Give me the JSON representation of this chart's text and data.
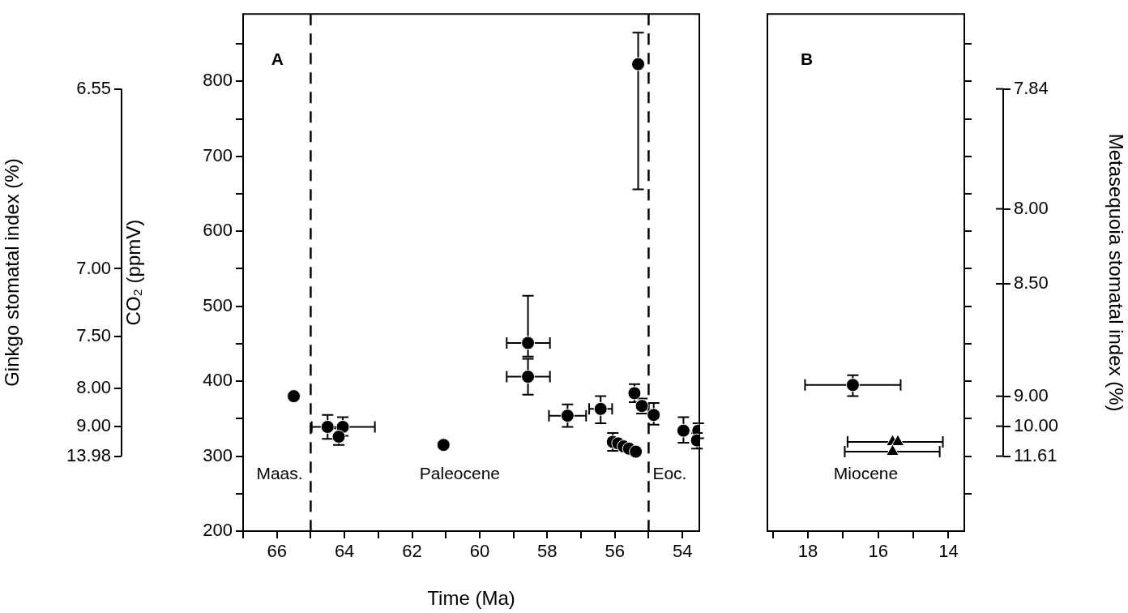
{
  "chart_data": [
    {
      "type": "scatter",
      "xlabel": "Time (Ma)",
      "ylabel": "CO₂ (ppmV)",
      "y2label": "Ginkgo stomatal index (%)",
      "xlim": [
        67,
        53.5
      ],
      "xticks": [
        {
          "value": 67,
          "label": null
        },
        66,
        {
          "value": 65,
          "label": null
        },
        64,
        {
          "value": 63,
          "label": null
        },
        62,
        {
          "value": 61,
          "label": null
        },
        60,
        {
          "value": 59,
          "label": null
        },
        58,
        {
          "value": 57,
          "label": null
        },
        56,
        {
          "value": 55,
          "label": null
        },
        54
      ],
      "ylim": [
        200,
        890
      ],
      "yticks": [
        200,
        {
          "value": 250,
          "label": null
        },
        300,
        {
          "value": 350,
          "label": null
        },
        400,
        {
          "value": 450,
          "label": null
        },
        500,
        {
          "value": 550,
          "label": null
        },
        600,
        {
          "value": 650,
          "label": null
        },
        700,
        {
          "value": 750,
          "label": null
        },
        800,
        {
          "value": 850,
          "label": null
        }
      ],
      "y2_categories": [
        null,
        null,
        null,
        null,
        null,
        null,
        null,
        null,
        null,
        null,
        "6.55",
        null,
        null,
        null,
        null,
        null,
        null,
        null,
        null,
        null,
        null,
        null,
        null,
        null,
        null,
        null,
        null,
        null,
        null,
        null,
        null,
        null,
        null,
        null,
        "7.00",
        null,
        null,
        null,
        null,
        null,
        null,
        null,
        null,
        "7.50",
        null,
        null,
        null,
        null,
        null,
        null,
        "8.00",
        null,
        null,
        null,
        null,
        "9.00",
        null,
        null,
        null,
        "13.98",
        null,
        null,
        null,
        null,
        null,
        null,
        null,
        null,
        null,
        null
      ],
      "series": [
        {
          "color": "#000000",
          "marker": "circle",
          "x": [
            65.5,
            64.5,
            64.05,
            64.17,
            61.07,
            58.57,
            58.57,
            57.4,
            56.42,
            56.06,
            55.9,
            55.74,
            55.58,
            55.38,
            55.42,
            55.2,
            54.85,
            55.31,
            53.97,
            53.53,
            53.57
          ],
          "values": [
            380,
            339,
            339,
            326,
            315,
            451,
            406,
            354,
            363,
            319,
            317,
            313,
            310,
            306,
            384,
            367,
            355,
            823,
            334,
            334,
            321
          ],
          "errors": [
            null,
            [
              323,
              355
            ],
            [
              327,
              352
            ],
            [
              315,
              337
            ],
            null,
            [
              433,
              514
            ],
            [
              382,
              430
            ],
            [
              339,
              369
            ],
            [
              344,
              380
            ],
            [
              307,
              331
            ],
            null,
            null,
            null,
            null,
            [
              372,
              396
            ],
            [
              357,
              377
            ],
            [
              342,
              371
            ],
            [
              656,
              865
            ],
            [
              318,
              352
            ],
            [
              324,
              344
            ],
            [
              310,
              331
            ]
          ],
          "xerrors": [
            null,
            null,
            [
              63.1,
              64.97
            ],
            null,
            null,
            [
              57.92,
              59.2
            ],
            [
              57.92,
              59.2
            ],
            [
              56.85,
              57.95
            ],
            [
              56.08,
              56.76
            ],
            null,
            null,
            null,
            null,
            null,
            null,
            null,
            null,
            null,
            null,
            null,
            null
          ]
        }
      ],
      "ref_lines": [
        {
          "axis": "x",
          "value": 65,
          "color": "#000000",
          "line_style": "dashed"
        },
        {
          "axis": "x",
          "value": 55,
          "color": "#000000",
          "line_style": "dashed"
        }
      ],
      "annotations": [
        "A",
        "Maas.",
        "Paleocene",
        "Eoc."
      ]
    },
    {
      "type": "scatter",
      "y2label": "Metasequoia stomatal index (%)",
      "tick_labels": "x",
      "xlim": [
        19.15,
        13.55
      ],
      "xticks": [
        {
          "value": 19,
          "label": null
        },
        18,
        {
          "value": 17,
          "label": null
        },
        16,
        {
          "value": 15,
          "label": null
        },
        14
      ],
      "ylim": [
        200,
        890
      ],
      "yticks": [
        {
          "value": 250,
          "label": null
        },
        {
          "value": 300,
          "label": null
        },
        {
          "value": 350,
          "label": null
        },
        {
          "value": 400,
          "label": null
        },
        {
          "value": 450,
          "label": null
        },
        {
          "value": 500,
          "label": null
        },
        {
          "value": 550,
          "label": null
        },
        {
          "value": 600,
          "label": null
        },
        {
          "value": 650,
          "label": null
        },
        {
          "value": 700,
          "label": null
        },
        {
          "value": 750,
          "label": null
        },
        {
          "value": 800,
          "label": null
        },
        {
          "value": 850,
          "label": null
        }
      ],
      "y2_categories": [
        null,
        null,
        null,
        null,
        null,
        null,
        null,
        null,
        null,
        null,
        "7.84",
        null,
        null,
        null,
        null,
        null,
        null,
        null,
        null,
        null,
        null,
        null,
        null,
        null,
        null,
        null,
        "8.00",
        null,
        null,
        null,
        null,
        null,
        null,
        null,
        null,
        null,
        "8.50",
        null,
        null,
        null,
        null,
        null,
        null,
        null,
        null,
        null,
        null,
        null,
        null,
        null,
        null,
        "9.00",
        null,
        null,
        null,
        "10.00",
        null,
        null,
        null,
        "11.61",
        null,
        null,
        null,
        null,
        null,
        null,
        null,
        null,
        null,
        null
      ],
      "series": [
        {
          "color": "#000000",
          "marker": "circle",
          "x": [
            16.72
          ],
          "values": [
            395
          ],
          "errors": [
            [
              380,
              408
            ]
          ],
          "xerrors": [
            [
              15.36,
              18.08
            ]
          ]
        },
        {
          "color": "#000000",
          "marker": "triangle",
          "x": [
            15.59,
            15.44,
            15.59
          ],
          "values": [
            319,
            319,
            306
          ],
          "errors": [
            null,
            null,
            null
          ],
          "xerrors": [
            [
              14.16,
              16.87
            ],
            null,
            [
              14.25,
              16.95
            ]
          ]
        }
      ],
      "annotations": [
        "B",
        "Miocene"
      ]
    }
  ]
}
